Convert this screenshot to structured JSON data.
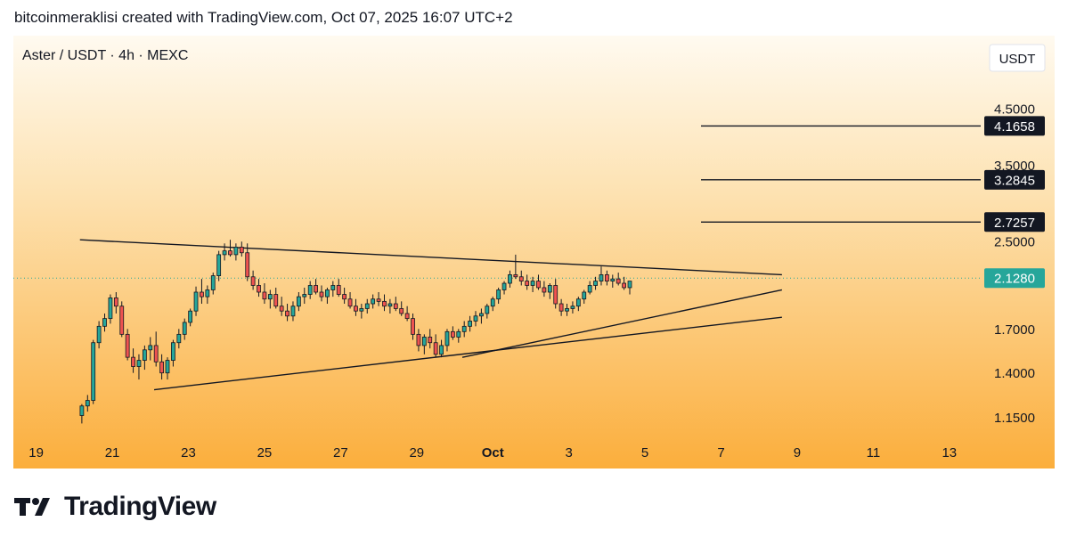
{
  "header": {
    "attribution": "bitcoinmeraklisi created with TradingView.com, Oct 07, 2025 16:07 UTC+2"
  },
  "footer": {
    "brand": "TradingView"
  },
  "chart_data": {
    "type": "candlestick",
    "title": "Aster / USDT · 4h · MEXC",
    "currency_label": "USDT",
    "y_scale": "log",
    "ylim": [
      1.1,
      5.0
    ],
    "xlim": [
      18.4,
      43.8
    ],
    "price_ticks": [
      "4.5000",
      "3.5000",
      "2.5000",
      "1.7000",
      "1.4000",
      "1.1500"
    ],
    "date_ticks": [
      {
        "x": 19,
        "label": "19"
      },
      {
        "x": 21,
        "label": "21"
      },
      {
        "x": 23,
        "label": "23"
      },
      {
        "x": 25,
        "label": "25"
      },
      {
        "x": 27,
        "label": "27"
      },
      {
        "x": 29,
        "label": "29"
      },
      {
        "x": 31,
        "label": "Oct"
      },
      {
        "x": 33,
        "label": "3"
      },
      {
        "x": 35,
        "label": "5"
      },
      {
        "x": 37,
        "label": "7"
      },
      {
        "x": 39,
        "label": "9"
      },
      {
        "x": 41,
        "label": "11"
      },
      {
        "x": 43,
        "label": "13"
      }
    ],
    "levels": [
      {
        "value": 4.1658,
        "label": "4.1658"
      },
      {
        "value": 3.2845,
        "label": "3.2845"
      },
      {
        "value": 2.7257,
        "label": "2.7257"
      }
    ],
    "current_price": {
      "value": 2.128,
      "label": "2.1280"
    },
    "trendlines": [
      {
        "x1": 20.15,
        "y1": 2.52,
        "x2": 38.6,
        "y2": 2.16
      },
      {
        "x1": 22.1,
        "y1": 1.3,
        "x2": 38.6,
        "y2": 1.79
      },
      {
        "x1": 30.2,
        "y1": 1.5,
        "x2": 38.6,
        "y2": 2.02
      }
    ],
    "candles": [
      [
        20.2,
        1.16,
        1.22,
        1.12,
        1.21
      ],
      [
        20.35,
        1.21,
        1.27,
        1.18,
        1.24
      ],
      [
        20.5,
        1.24,
        1.62,
        1.22,
        1.6
      ],
      [
        20.65,
        1.6,
        1.76,
        1.56,
        1.72
      ],
      [
        20.8,
        1.72,
        1.82,
        1.68,
        1.78
      ],
      [
        20.95,
        1.78,
        1.98,
        1.74,
        1.95
      ],
      [
        21.1,
        1.95,
        2.0,
        1.82,
        1.88
      ],
      [
        21.25,
        1.88,
        1.92,
        1.64,
        1.66
      ],
      [
        21.4,
        1.66,
        1.7,
        1.48,
        1.5
      ],
      [
        21.55,
        1.5,
        1.56,
        1.4,
        1.44
      ],
      [
        21.7,
        1.44,
        1.52,
        1.36,
        1.48
      ],
      [
        21.85,
        1.48,
        1.58,
        1.42,
        1.55
      ],
      [
        22.0,
        1.55,
        1.64,
        1.48,
        1.58
      ],
      [
        22.15,
        1.58,
        1.68,
        1.44,
        1.47
      ],
      [
        22.3,
        1.47,
        1.52,
        1.36,
        1.4
      ],
      [
        22.45,
        1.4,
        1.5,
        1.36,
        1.48
      ],
      [
        22.6,
        1.48,
        1.62,
        1.44,
        1.6
      ],
      [
        22.75,
        1.6,
        1.7,
        1.56,
        1.66
      ],
      [
        22.9,
        1.66,
        1.78,
        1.62,
        1.75
      ],
      [
        23.05,
        1.75,
        1.86,
        1.72,
        1.84
      ],
      [
        23.2,
        1.84,
        2.05,
        1.8,
        2.0
      ],
      [
        23.35,
        2.0,
        2.12,
        1.9,
        1.96
      ],
      [
        23.5,
        1.96,
        2.06,
        1.9,
        2.02
      ],
      [
        23.65,
        2.02,
        2.18,
        1.98,
        2.15
      ],
      [
        23.8,
        2.15,
        2.4,
        2.1,
        2.36
      ],
      [
        23.95,
        2.36,
        2.48,
        2.3,
        2.4
      ],
      [
        24.1,
        2.4,
        2.52,
        2.34,
        2.36
      ],
      [
        24.25,
        2.36,
        2.48,
        2.3,
        2.44
      ],
      [
        24.4,
        2.44,
        2.5,
        2.34,
        2.38
      ],
      [
        24.55,
        2.38,
        2.48,
        2.1,
        2.14
      ],
      [
        24.7,
        2.14,
        2.2,
        2.02,
        2.06
      ],
      [
        24.85,
        2.06,
        2.12,
        1.96,
        2.0
      ],
      [
        25.0,
        2.0,
        2.08,
        1.9,
        1.94
      ],
      [
        25.15,
        1.94,
        2.02,
        1.86,
        1.98
      ],
      [
        25.3,
        1.98,
        2.04,
        1.86,
        1.88
      ],
      [
        25.45,
        1.88,
        1.96,
        1.8,
        1.84
      ],
      [
        25.6,
        1.84,
        1.9,
        1.76,
        1.8
      ],
      [
        25.75,
        1.8,
        1.92,
        1.76,
        1.88
      ],
      [
        25.9,
        1.88,
        2.0,
        1.84,
        1.96
      ],
      [
        26.05,
        1.96,
        2.04,
        1.9,
        1.98
      ],
      [
        26.2,
        1.98,
        2.1,
        1.94,
        2.06
      ],
      [
        26.35,
        2.06,
        2.12,
        1.98,
        2.0
      ],
      [
        26.5,
        2.0,
        2.06,
        1.92,
        1.96
      ],
      [
        26.65,
        1.96,
        2.04,
        1.9,
        2.02
      ],
      [
        26.8,
        2.02,
        2.1,
        1.96,
        2.06
      ],
      [
        26.95,
        2.06,
        2.12,
        1.96,
        1.98
      ],
      [
        27.1,
        1.98,
        2.04,
        1.9,
        1.94
      ],
      [
        27.25,
        1.94,
        2.0,
        1.86,
        1.88
      ],
      [
        27.4,
        1.88,
        1.94,
        1.8,
        1.84
      ],
      [
        27.55,
        1.84,
        1.9,
        1.78,
        1.86
      ],
      [
        27.7,
        1.86,
        1.94,
        1.82,
        1.9
      ],
      [
        27.85,
        1.9,
        1.98,
        1.86,
        1.94
      ],
      [
        28.0,
        1.94,
        2.0,
        1.88,
        1.92
      ],
      [
        28.15,
        1.92,
        1.98,
        1.84,
        1.88
      ],
      [
        28.3,
        1.88,
        1.94,
        1.82,
        1.9
      ],
      [
        28.45,
        1.9,
        1.96,
        1.84,
        1.86
      ],
      [
        28.6,
        1.86,
        1.92,
        1.8,
        1.82
      ],
      [
        28.75,
        1.82,
        1.88,
        1.76,
        1.78
      ],
      [
        28.9,
        1.78,
        1.82,
        1.62,
        1.66
      ],
      [
        29.05,
        1.66,
        1.7,
        1.54,
        1.58
      ],
      [
        29.2,
        1.58,
        1.66,
        1.52,
        1.64
      ],
      [
        29.35,
        1.64,
        1.7,
        1.56,
        1.6
      ],
      [
        29.5,
        1.6,
        1.66,
        1.5,
        1.52
      ],
      [
        29.65,
        1.52,
        1.62,
        1.5,
        1.58
      ],
      [
        29.8,
        1.58,
        1.7,
        1.54,
        1.68
      ],
      [
        29.95,
        1.68,
        1.72,
        1.62,
        1.64
      ],
      [
        30.1,
        1.64,
        1.7,
        1.6,
        1.68
      ],
      [
        30.25,
        1.68,
        1.76,
        1.64,
        1.72
      ],
      [
        30.4,
        1.72,
        1.8,
        1.68,
        1.76
      ],
      [
        30.55,
        1.76,
        1.84,
        1.72,
        1.8
      ],
      [
        30.7,
        1.8,
        1.86,
        1.74,
        1.82
      ],
      [
        30.85,
        1.82,
        1.9,
        1.78,
        1.88
      ],
      [
        31.0,
        1.88,
        1.96,
        1.84,
        1.94
      ],
      [
        31.15,
        1.94,
        2.04,
        1.9,
        2.02
      ],
      [
        31.3,
        2.02,
        2.1,
        1.98,
        2.08
      ],
      [
        31.45,
        2.08,
        2.2,
        2.04,
        2.16
      ],
      [
        31.6,
        2.16,
        2.36,
        2.12,
        2.14
      ],
      [
        31.75,
        2.14,
        2.2,
        2.06,
        2.1
      ],
      [
        31.9,
        2.1,
        2.16,
        2.02,
        2.06
      ],
      [
        32.05,
        2.06,
        2.14,
        2.0,
        2.1
      ],
      [
        32.2,
        2.1,
        2.16,
        2.02,
        2.04
      ],
      [
        32.35,
        2.04,
        2.1,
        1.96,
        2.0
      ],
      [
        32.5,
        2.0,
        2.08,
        1.94,
        2.06
      ],
      [
        32.65,
        2.06,
        2.12,
        1.86,
        1.9
      ],
      [
        32.8,
        1.9,
        1.94,
        1.8,
        1.84
      ],
      [
        32.95,
        1.84,
        1.9,
        1.8,
        1.86
      ],
      [
        33.1,
        1.86,
        1.92,
        1.82,
        1.88
      ],
      [
        33.25,
        1.88,
        1.96,
        1.84,
        1.94
      ],
      [
        33.4,
        1.94,
        2.02,
        1.9,
        2.0
      ],
      [
        33.55,
        2.0,
        2.1,
        1.98,
        2.06
      ],
      [
        33.7,
        2.06,
        2.14,
        2.02,
        2.1
      ],
      [
        33.85,
        2.1,
        2.24,
        2.06,
        2.16
      ],
      [
        34.0,
        2.16,
        2.2,
        2.06,
        2.1
      ],
      [
        34.15,
        2.1,
        2.16,
        2.04,
        2.12
      ],
      [
        34.3,
        2.12,
        2.18,
        2.06,
        2.08
      ],
      [
        34.45,
        2.08,
        2.14,
        2.02,
        2.04
      ],
      [
        34.6,
        2.04,
        2.1,
        1.98,
        2.1
      ]
    ]
  }
}
